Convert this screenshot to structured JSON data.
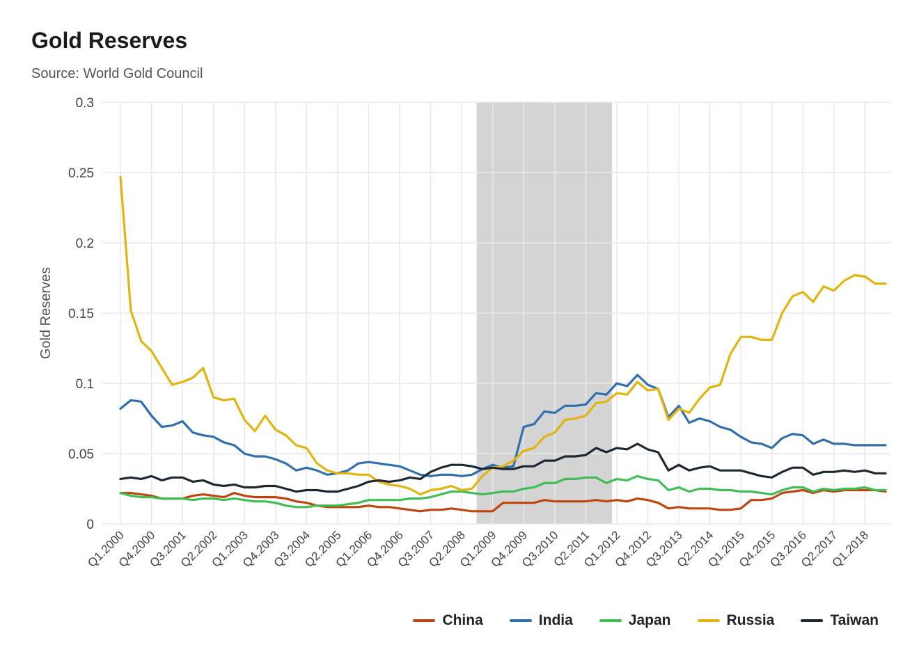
{
  "chart_data": {
    "type": "line",
    "title": "Gold Reserves",
    "subtitle": "Source: World Gold Council",
    "ylabel": "Gold Reserves",
    "xlabel": "",
    "ylim": [
      0,
      0.3
    ],
    "yticks": [
      "0",
      "0.05",
      "0.1",
      "0.15",
      "0.2",
      "0.25",
      "0.3"
    ],
    "ytick_values": [
      0,
      0.05,
      0.1,
      0.15,
      0.2,
      0.25,
      0.3
    ],
    "grid": true,
    "legend_position": "bottom-right",
    "x": [
      "Q1.2000",
      "Q2.2000",
      "Q3.2000",
      "Q4.2000",
      "Q1.2001",
      "Q2.2001",
      "Q3.2001",
      "Q4.2001",
      "Q1.2002",
      "Q2.2002",
      "Q3.2002",
      "Q4.2002",
      "Q1.2003",
      "Q2.2003",
      "Q3.2003",
      "Q4.2003",
      "Q1.2004",
      "Q2.2004",
      "Q3.2004",
      "Q4.2004",
      "Q1.2005",
      "Q2.2005",
      "Q3.2005",
      "Q4.2005",
      "Q1.2006",
      "Q2.2006",
      "Q3.2006",
      "Q4.2006",
      "Q1.2007",
      "Q2.2007",
      "Q3.2007",
      "Q4.2007",
      "Q1.2008",
      "Q2.2008",
      "Q3.2008",
      "Q4.2008",
      "Q1.2009",
      "Q2.2009",
      "Q3.2009",
      "Q4.2009",
      "Q1.2010",
      "Q2.2010",
      "Q3.2010",
      "Q4.2010",
      "Q1.2011",
      "Q2.2011",
      "Q3.2011",
      "Q4.2011",
      "Q1.2012",
      "Q2.2012",
      "Q3.2012",
      "Q4.2012",
      "Q1.2013",
      "Q2.2013",
      "Q3.2013",
      "Q4.2013",
      "Q1.2014",
      "Q2.2014",
      "Q3.2014",
      "Q4.2014",
      "Q1.2015",
      "Q2.2015",
      "Q3.2015",
      "Q4.2015",
      "Q1.2016",
      "Q2.2016",
      "Q3.2016",
      "Q4.2016",
      "Q1.2017",
      "Q2.2017",
      "Q3.2017",
      "Q4.2017",
      "Q1.2018",
      "Q2.2018",
      "Q3.2018"
    ],
    "xtick_labels": [
      "Q1.2000",
      "Q4.2000",
      "Q3.2001",
      "Q2.2002",
      "Q1.2003",
      "Q4.2003",
      "Q3.2004",
      "Q2.2005",
      "Q1.2006",
      "Q4.2006",
      "Q3.2007",
      "Q2.2008",
      "Q1.2009",
      "Q4.2009",
      "Q3.2010",
      "Q2.2011",
      "Q1.2012",
      "Q4.2012",
      "Q3.2013",
      "Q2.2014",
      "Q1.2015",
      "Q4.2015",
      "Q3.2016",
      "Q2.2017",
      "Q1.2018"
    ],
    "shaded_region": {
      "from": "Q4.2008",
      "to": "Q4.2011",
      "color": "#d4d4d4"
    },
    "series": [
      {
        "name": "China",
        "color": "#c0440e",
        "values": [
          0.022,
          0.022,
          0.021,
          0.02,
          0.018,
          0.018,
          0.018,
          0.02,
          0.021,
          0.02,
          0.019,
          0.022,
          0.02,
          0.019,
          0.019,
          0.019,
          0.018,
          0.016,
          0.015,
          0.013,
          0.012,
          0.012,
          0.012,
          0.012,
          0.013,
          0.012,
          0.012,
          0.011,
          0.01,
          0.009,
          0.01,
          0.01,
          0.011,
          0.01,
          0.009,
          0.009,
          0.009,
          0.015,
          0.015,
          0.015,
          0.015,
          0.017,
          0.016,
          0.016,
          0.016,
          0.016,
          0.017,
          0.016,
          0.017,
          0.016,
          0.018,
          0.017,
          0.015,
          0.011,
          0.012,
          0.011,
          0.011,
          0.011,
          0.01,
          0.01,
          0.011,
          0.017,
          0.017,
          0.018,
          0.022,
          0.023,
          0.024,
          0.022,
          0.024,
          0.023,
          0.024,
          0.024,
          0.024,
          0.024,
          0.023
        ]
      },
      {
        "name": "India",
        "color": "#2f6fad",
        "values": [
          0.082,
          0.088,
          0.087,
          0.077,
          0.069,
          0.07,
          0.073,
          0.065,
          0.063,
          0.062,
          0.058,
          0.056,
          0.05,
          0.048,
          0.048,
          0.046,
          0.043,
          0.038,
          0.04,
          0.038,
          0.035,
          0.036,
          0.038,
          0.043,
          0.044,
          0.043,
          0.042,
          0.041,
          0.038,
          0.035,
          0.034,
          0.035,
          0.035,
          0.034,
          0.035,
          0.039,
          0.042,
          0.04,
          0.041,
          0.069,
          0.071,
          0.08,
          0.079,
          0.084,
          0.084,
          0.085,
          0.093,
          0.092,
          0.1,
          0.098,
          0.106,
          0.099,
          0.096,
          0.076,
          0.084,
          0.072,
          0.075,
          0.073,
          0.069,
          0.067,
          0.062,
          0.058,
          0.057,
          0.054,
          0.061,
          0.064,
          0.063,
          0.057,
          0.06,
          0.057,
          0.057,
          0.056,
          0.056,
          0.056,
          0.056
        ]
      },
      {
        "name": "Japan",
        "color": "#3fbe55",
        "values": [
          0.022,
          0.02,
          0.019,
          0.019,
          0.018,
          0.018,
          0.018,
          0.017,
          0.018,
          0.018,
          0.017,
          0.018,
          0.017,
          0.016,
          0.016,
          0.015,
          0.013,
          0.012,
          0.012,
          0.013,
          0.013,
          0.013,
          0.014,
          0.015,
          0.017,
          0.017,
          0.017,
          0.017,
          0.018,
          0.018,
          0.019,
          0.021,
          0.023,
          0.023,
          0.022,
          0.021,
          0.022,
          0.023,
          0.023,
          0.025,
          0.026,
          0.029,
          0.029,
          0.032,
          0.032,
          0.033,
          0.033,
          0.029,
          0.032,
          0.031,
          0.034,
          0.032,
          0.031,
          0.024,
          0.026,
          0.023,
          0.025,
          0.025,
          0.024,
          0.024,
          0.023,
          0.023,
          0.022,
          0.021,
          0.024,
          0.026,
          0.026,
          0.023,
          0.025,
          0.024,
          0.025,
          0.025,
          0.026,
          0.024,
          0.024
        ]
      },
      {
        "name": "Russia",
        "color": "#e2b40f",
        "values": [
          0.247,
          0.152,
          0.13,
          0.123,
          0.111,
          0.099,
          0.101,
          0.104,
          0.111,
          0.09,
          0.088,
          0.089,
          0.074,
          0.066,
          0.077,
          0.067,
          0.063,
          0.056,
          0.054,
          0.043,
          0.038,
          0.036,
          0.036,
          0.035,
          0.035,
          0.03,
          0.028,
          0.027,
          0.025,
          0.021,
          0.024,
          0.025,
          0.027,
          0.024,
          0.025,
          0.034,
          0.04,
          0.041,
          0.045,
          0.052,
          0.054,
          0.062,
          0.065,
          0.074,
          0.075,
          0.077,
          0.086,
          0.087,
          0.093,
          0.092,
          0.101,
          0.095,
          0.096,
          0.074,
          0.082,
          0.079,
          0.089,
          0.097,
          0.099,
          0.121,
          0.133,
          0.133,
          0.131,
          0.131,
          0.15,
          0.162,
          0.165,
          0.158,
          0.169,
          0.166,
          0.173,
          0.177,
          0.176,
          0.171,
          0.171
        ]
      },
      {
        "name": "Taiwan",
        "color": "#1e2732",
        "values": [
          0.032,
          0.033,
          0.032,
          0.034,
          0.031,
          0.033,
          0.033,
          0.03,
          0.031,
          0.028,
          0.027,
          0.028,
          0.026,
          0.026,
          0.027,
          0.027,
          0.025,
          0.023,
          0.024,
          0.024,
          0.023,
          0.023,
          0.025,
          0.027,
          0.03,
          0.031,
          0.03,
          0.031,
          0.033,
          0.032,
          0.037,
          0.04,
          0.042,
          0.042,
          0.041,
          0.039,
          0.04,
          0.039,
          0.039,
          0.041,
          0.041,
          0.045,
          0.045,
          0.048,
          0.048,
          0.049,
          0.054,
          0.051,
          0.054,
          0.053,
          0.057,
          0.053,
          0.051,
          0.038,
          0.042,
          0.038,
          0.04,
          0.041,
          0.038,
          0.038,
          0.038,
          0.036,
          0.034,
          0.033,
          0.037,
          0.04,
          0.04,
          0.035,
          0.037,
          0.037,
          0.038,
          0.037,
          0.038,
          0.036,
          0.036
        ]
      }
    ]
  }
}
